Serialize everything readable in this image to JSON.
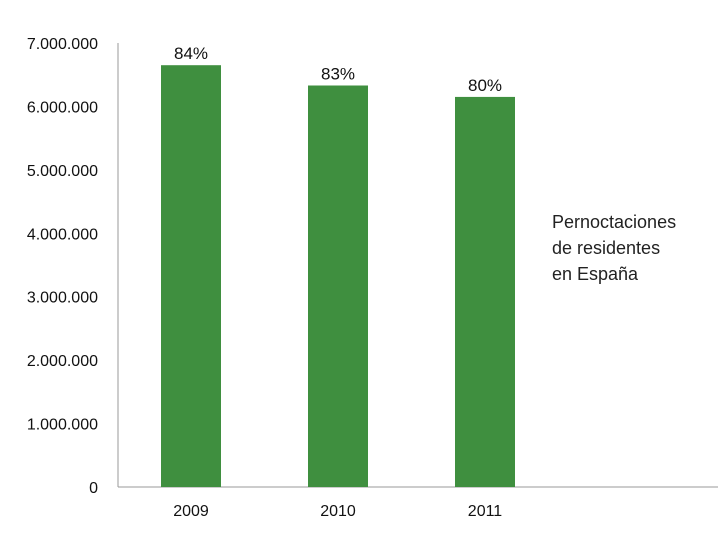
{
  "chart_data": {
    "type": "bar",
    "categories": [
      "2009",
      "2010",
      "2011"
    ],
    "series": [
      {
        "name": "Pernoctaciones de residentes en España",
        "values": [
          6650000,
          6330000,
          6150000
        ],
        "data_labels": [
          "84%",
          "83%",
          "80%"
        ],
        "color": "#3f8f3f"
      }
    ],
    "ylim": [
      0,
      7000000
    ],
    "yticks": [
      "0",
      "1.000.000",
      "2.000.000",
      "3.000.000",
      "4.000.000",
      "5.000.000",
      "6.000.000",
      "7.000.000"
    ],
    "grid": false,
    "legend": {
      "position": "right",
      "lines": [
        "Pernoctaciones",
        "de residentes",
        "en España"
      ]
    }
  }
}
